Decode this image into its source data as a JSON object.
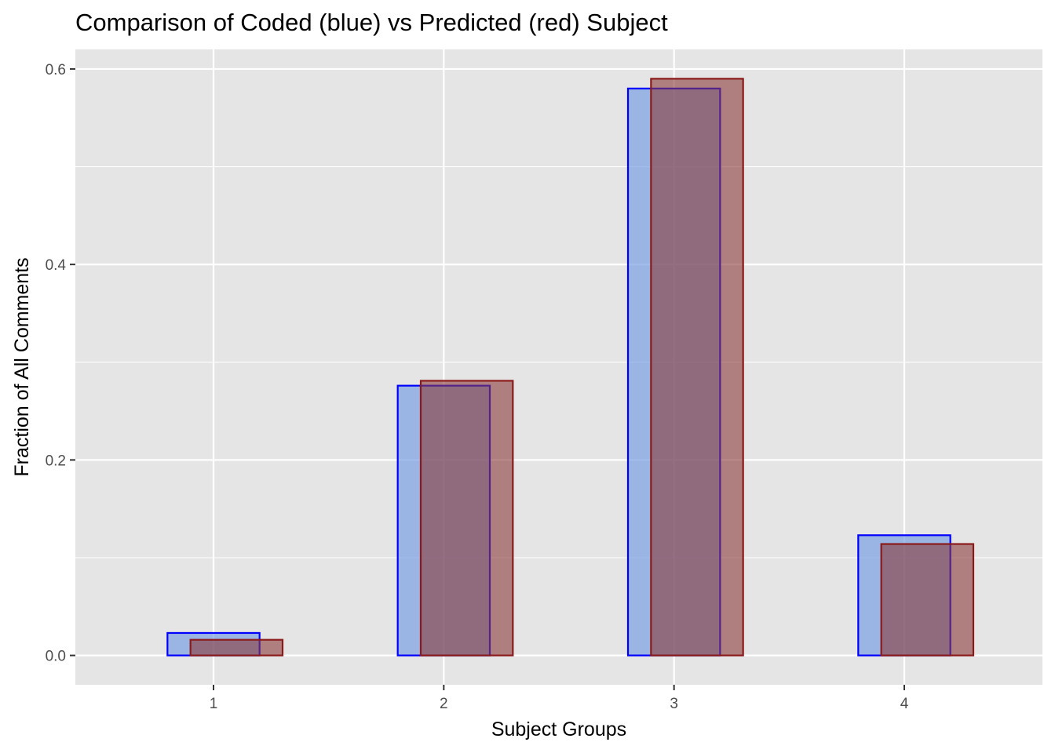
{
  "chart_data": {
    "type": "bar",
    "title": "Comparison of Coded (blue) vs Predicted (red) Subject",
    "xlabel": "Subject Groups",
    "ylabel": "Fraction of All Comments",
    "categories": [
      "1",
      "2",
      "3",
      "4"
    ],
    "yticks": [
      "0.0",
      "0.2",
      "0.4",
      "0.6"
    ],
    "ylim": [
      -0.03,
      0.62
    ],
    "grid": true,
    "legend": "none",
    "series": [
      {
        "values": [
          0.023,
          0.276,
          0.58,
          0.123
        ],
        "fill": "#7b9fe3",
        "stroke": "#0000ff"
      },
      {
        "values": [
          0.016,
          0.281,
          0.59,
          0.114
        ],
        "fill": "#8b3a3a",
        "stroke": "#8b1a1a"
      }
    ],
    "panel_color": "#e5e5e5",
    "grid_color": "#ffffff"
  }
}
